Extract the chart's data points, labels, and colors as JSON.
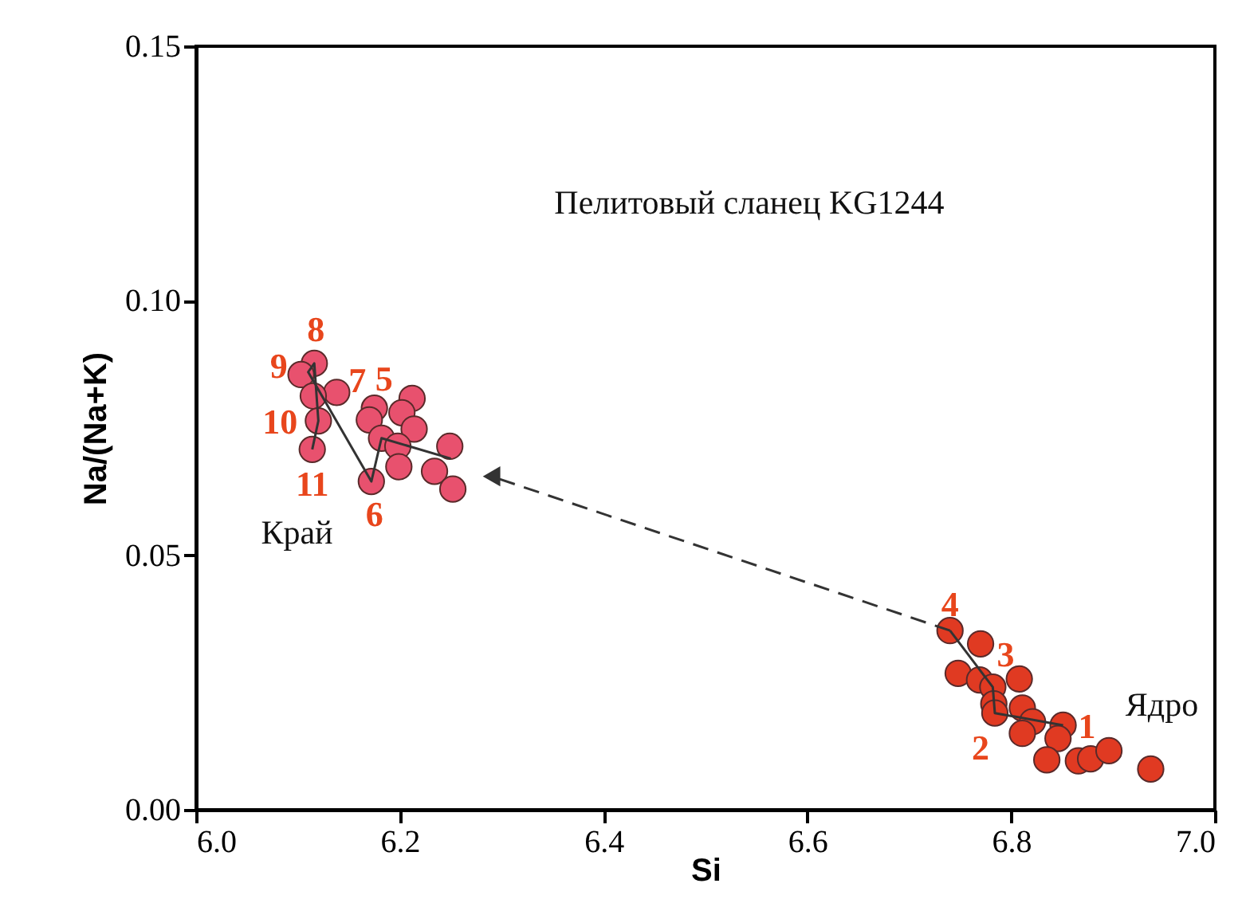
{
  "chart_data": {
    "type": "scatter",
    "xlabel": "Si",
    "ylabel": "Na/(Na+K)",
    "xlim": [
      6.0,
      7.0
    ],
    "ylim": [
      0.0,
      0.15
    ],
    "xticks": [
      {
        "value": 6.0,
        "label": "6.0"
      },
      6.2,
      6.4,
      6.6,
      6.8,
      {
        "value": 7.0,
        "label": "7.0"
      }
    ],
    "yticks": [
      {
        "value": 0.0,
        "label": "0.00"
      },
      {
        "value": 0.05,
        "label": "0.05"
      },
      {
        "value": 0.1,
        "label": "0.10"
      },
      {
        "value": 0.15,
        "label": "0.15"
      }
    ],
    "grid": false,
    "series": [
      {
        "type": "line",
        "color": "#333333",
        "line_style": "dashed",
        "marker": "triangle",
        "x": [
          6.74,
          6.29
        ],
        "values": [
          0.0352,
          0.0655
        ]
      },
      {
        "type": "line",
        "color": "#333333",
        "line_style": "solid",
        "marker": "none",
        "x": [
          6.851,
          6.784,
          6.782,
          6.74
        ],
        "values": [
          0.0166,
          0.019,
          0.0241,
          0.0352
        ]
      },
      {
        "type": "line",
        "color": "#333333",
        "line_style": "solid",
        "marker": "none",
        "x": [
          6.25,
          6.182,
          6.172,
          6.11,
          6.116,
          6.12,
          6.114
        ],
        "values": [
          0.069,
          0.073,
          0.0645,
          0.086,
          0.0877,
          0.0764,
          0.0708
        ]
      },
      {
        "color": "#e8516e",
        "marker": "circle",
        "x": [
          6.116,
          6.103,
          6.138,
          6.115,
          6.12,
          6.114,
          6.172,
          6.175,
          6.17,
          6.212,
          6.202,
          6.214,
          6.182,
          6.198,
          6.199,
          6.249,
          6.234,
          6.252
        ],
        "values": [
          0.0877,
          0.0855,
          0.082,
          0.0813,
          0.0764,
          0.0708,
          0.0645,
          0.0789,
          0.0766,
          0.0808,
          0.078,
          0.0748,
          0.073,
          0.0714,
          0.0674,
          0.0714,
          0.0665,
          0.063
        ]
      },
      {
        "color": "#e03a22",
        "marker": "circle",
        "x": [
          6.74,
          6.77,
          6.748,
          6.769,
          6.782,
          6.808,
          6.783,
          6.784,
          6.811,
          6.821,
          6.811,
          6.851,
          6.846,
          6.835,
          6.866,
          6.878,
          6.896,
          6.937
        ],
        "values": [
          0.0352,
          0.0326,
          0.0268,
          0.0255,
          0.0241,
          0.0257,
          0.0208,
          0.019,
          0.02,
          0.0173,
          0.015,
          0.0166,
          0.014,
          0.0098,
          0.0096,
          0.01,
          0.0116,
          0.008
        ]
      }
    ],
    "annotations": [
      "Пелитовый сланец KG1244",
      "Край",
      "Ядро",
      {
        "text": "1",
        "x": 6.851,
        "y": 0.0166
      },
      {
        "text": "2",
        "x": 6.784,
        "y": 0.019
      },
      {
        "text": "3",
        "x": 6.782,
        "y": 0.0241
      },
      {
        "text": "4",
        "x": 6.74,
        "y": 0.0352
      },
      {
        "text": "5",
        "x": 6.175,
        "y": 0.0789
      },
      {
        "text": "6",
        "x": 6.172,
        "y": 0.0645
      },
      {
        "text": "7",
        "x": 6.138,
        "y": 0.082
      },
      {
        "text": "8",
        "x": 6.116,
        "y": 0.0877
      },
      {
        "text": "9",
        "x": 6.103,
        "y": 0.0855
      },
      {
        "text": "10",
        "x": 6.12,
        "y": 0.0764
      },
      {
        "text": "11",
        "x": 6.114,
        "y": 0.0708
      }
    ]
  }
}
